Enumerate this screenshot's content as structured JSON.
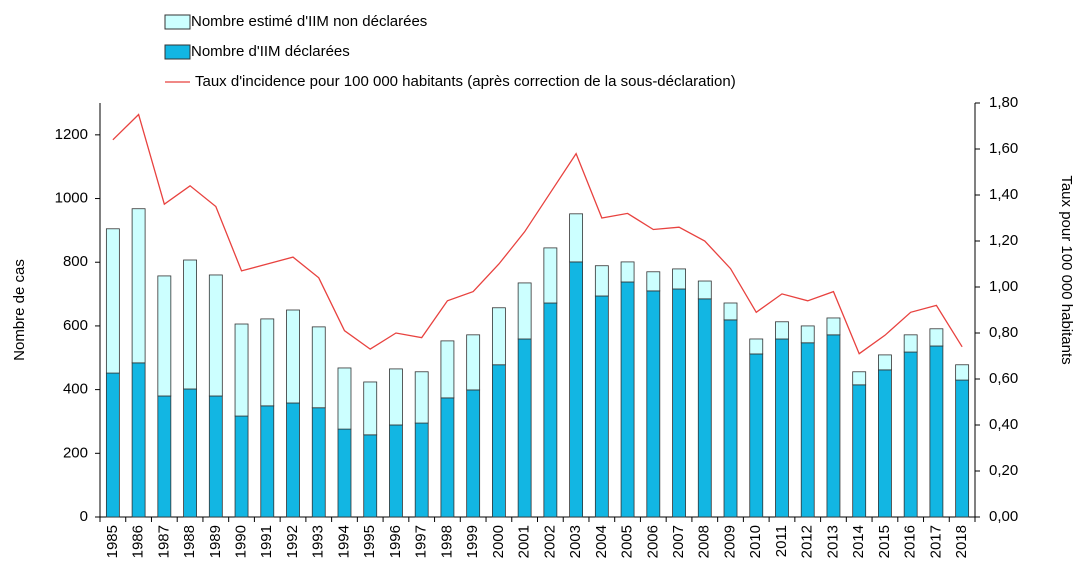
{
  "chart_data": {
    "type": "bar",
    "categories": [
      "1985",
      "1986",
      "1987",
      "1988",
      "1989",
      "1990",
      "1991",
      "1992",
      "1993",
      "1994",
      "1995",
      "1996",
      "1997",
      "1998",
      "1999",
      "2000",
      "2001",
      "2002",
      "2003",
      "2004",
      "2005",
      "2006",
      "2007",
      "2008",
      "2009",
      "2010",
      "2011",
      "2012",
      "2013",
      "2014",
      "2015",
      "2016",
      "2017",
      "2018"
    ],
    "series": [
      {
        "name": "Nombre d'IIM déclarées",
        "type": "bar",
        "color": "#12b6e3",
        "values": [
          452,
          484,
          380,
          402,
          380,
          317,
          349,
          358,
          343,
          276,
          258,
          289,
          295,
          374,
          399,
          478,
          559,
          672,
          801,
          694,
          738,
          710,
          716,
          685,
          619,
          512,
          559,
          547,
          572,
          415,
          462,
          518,
          537,
          430
        ]
      },
      {
        "name": "Nombre estimé d'IIM non déclarées",
        "type": "bar",
        "color": "#ccffff",
        "values": [
          453,
          484,
          377,
          405,
          380,
          289,
          273,
          292,
          254,
          192,
          166,
          176,
          161,
          179,
          173,
          179,
          176,
          173,
          151,
          95,
          63,
          60,
          63,
          56,
          53,
          47,
          54,
          53,
          53,
          41,
          47,
          54,
          54,
          48
        ]
      },
      {
        "name": "Taux d'incidence pour 100 000 habitants (après correction de la sous-déclaration)",
        "type": "line",
        "axis": "y2",
        "color": "#e8423f",
        "values": [
          1.64,
          1.75,
          1.36,
          1.44,
          1.35,
          1.07,
          1.1,
          1.13,
          1.04,
          0.81,
          0.73,
          0.8,
          0.78,
          0.94,
          0.98,
          1.1,
          1.24,
          1.41,
          1.58,
          1.3,
          1.32,
          1.25,
          1.26,
          1.2,
          1.08,
          0.89,
          0.97,
          0.94,
          0.98,
          0.71,
          0.79,
          0.89,
          0.92,
          0.74
        ]
      }
    ],
    "stacked": true,
    "ylabel": "Nombre de cas",
    "y2label": "Taux pour 100 000 habitants",
    "ylim": [
      0,
      1300
    ],
    "yticks": [
      0,
      200,
      400,
      600,
      800,
      1000,
      1200
    ],
    "y2lim": [
      0,
      1.8
    ],
    "y2ticks": [
      {
        "value": 0,
        "label": "0,00"
      },
      {
        "value": 0.2,
        "label": "0,20"
      },
      {
        "value": 0.4,
        "label": "0,40"
      },
      {
        "value": 0.6,
        "label": "0,60"
      },
      {
        "value": 0.8,
        "label": "0,80"
      },
      {
        "value": 1.0,
        "label": "1,00"
      },
      {
        "value": 1.2,
        "label": "1,20"
      },
      {
        "value": 1.4,
        "label": "1,40"
      },
      {
        "value": 1.6,
        "label": "1,60"
      },
      {
        "value": 1.8,
        "label": "1,80"
      }
    ],
    "grid": false,
    "legend": "top"
  }
}
